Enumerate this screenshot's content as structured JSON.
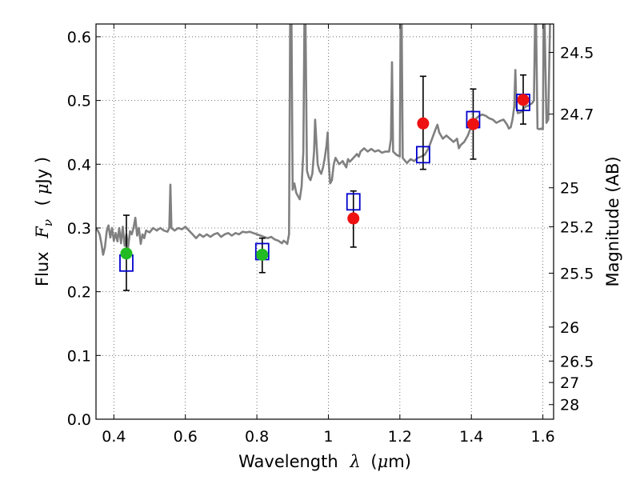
{
  "chart_data": {
    "type": "scatter",
    "title": "",
    "xlabel_prefix": "Wavelength",
    "xlabel_var": "λ",
    "xlabel_unit_open": "(",
    "xlabel_unit_mu": "μ",
    "xlabel_unit_rest": "m)",
    "ylabel_prefix": "Flux",
    "ylabel_var": "F",
    "ylabel_sub": "ν",
    "ylabel_unit_open": "(",
    "ylabel_unit_mu": "μ",
    "ylabel_unit_rest": "Jy )",
    "y2label": "Magnitude (AB)",
    "xlim": [
      0.35,
      1.63
    ],
    "ylim": [
      0.0,
      0.62
    ],
    "x_ticks": [
      {
        "v": 0.4,
        "label": "0.4"
      },
      {
        "v": 0.6,
        "label": "0.6"
      },
      {
        "v": 0.8,
        "label": "0.8"
      },
      {
        "v": 1.0,
        "label": "1"
      },
      {
        "v": 1.2,
        "label": "1.2"
      },
      {
        "v": 1.4,
        "label": "1.4"
      },
      {
        "v": 1.6,
        "label": "1.6"
      }
    ],
    "y_ticks": [
      {
        "v": 0.0,
        "label": "0.0"
      },
      {
        "v": 0.1,
        "label": "0.1"
      },
      {
        "v": 0.2,
        "label": "0.2"
      },
      {
        "v": 0.3,
        "label": "0.3"
      },
      {
        "v": 0.4,
        "label": "0.4"
      },
      {
        "v": 0.5,
        "label": "0.5"
      },
      {
        "v": 0.6,
        "label": "0.6"
      }
    ],
    "y2_ticks": [
      {
        "mag": 24.5,
        "label": "24.5"
      },
      {
        "mag": 24.7,
        "label": "24.7"
      },
      {
        "mag": 25,
        "label": "25"
      },
      {
        "mag": 25.2,
        "label": "25.2"
      },
      {
        "mag": 25.5,
        "label": "25.5"
      },
      {
        "mag": 26,
        "label": "26"
      },
      {
        "mag": 26.5,
        "label": "26.5"
      },
      {
        "mag": 27,
        "label": "27"
      },
      {
        "mag": 28,
        "label": "28"
      }
    ],
    "grid": true,
    "colors": {
      "spectrum": "#808080",
      "model_points": "#0000cc",
      "observed_optical": "#22bb22",
      "observed_nir": "#ee1111",
      "errorbar": "#000000",
      "grid": "#555555"
    },
    "series": [
      {
        "kind": "line",
        "style": "spectrum",
        "points": [
          [
            0.35,
            0.3
          ],
          [
            0.355,
            0.296
          ],
          [
            0.36,
            0.29
          ],
          [
            0.365,
            0.276
          ],
          [
            0.37,
            0.258
          ],
          [
            0.375,
            0.27
          ],
          [
            0.38,
            0.295
          ],
          [
            0.385,
            0.304
          ],
          [
            0.39,
            0.285
          ],
          [
            0.395,
            0.3
          ],
          [
            0.4,
            0.28
          ],
          [
            0.405,
            0.292
          ],
          [
            0.41,
            0.279
          ],
          [
            0.415,
            0.3
          ],
          [
            0.42,
            0.276
          ],
          [
            0.425,
            0.302
          ],
          [
            0.43,
            0.272
          ],
          [
            0.435,
            0.29
          ],
          [
            0.44,
            0.27
          ],
          [
            0.445,
            0.295
          ],
          [
            0.45,
            0.29
          ],
          [
            0.455,
            0.3
          ],
          [
            0.46,
            0.316
          ],
          [
            0.465,
            0.288
          ],
          [
            0.47,
            0.3
          ],
          [
            0.475,
            0.275
          ],
          [
            0.48,
            0.29
          ],
          [
            0.485,
            0.284
          ],
          [
            0.49,
            0.296
          ],
          [
            0.5,
            0.293
          ],
          [
            0.51,
            0.3
          ],
          [
            0.52,
            0.296
          ],
          [
            0.53,
            0.3
          ],
          [
            0.54,
            0.296
          ],
          [
            0.55,
            0.294
          ],
          [
            0.555,
            0.3
          ],
          [
            0.558,
            0.368
          ],
          [
            0.561,
            0.3
          ],
          [
            0.57,
            0.296
          ],
          [
            0.58,
            0.3
          ],
          [
            0.59,
            0.298
          ],
          [
            0.6,
            0.302
          ],
          [
            0.61,
            0.296
          ],
          [
            0.62,
            0.29
          ],
          [
            0.63,
            0.284
          ],
          [
            0.64,
            0.29
          ],
          [
            0.65,
            0.286
          ],
          [
            0.66,
            0.29
          ],
          [
            0.67,
            0.286
          ],
          [
            0.68,
            0.29
          ],
          [
            0.69,
            0.292
          ],
          [
            0.7,
            0.286
          ],
          [
            0.71,
            0.29
          ],
          [
            0.72,
            0.292
          ],
          [
            0.73,
            0.288
          ],
          [
            0.74,
            0.292
          ],
          [
            0.75,
            0.29
          ],
          [
            0.76,
            0.294
          ],
          [
            0.77,
            0.293
          ],
          [
            0.78,
            0.294
          ],
          [
            0.79,
            0.292
          ],
          [
            0.8,
            0.29
          ],
          [
            0.81,
            0.288
          ],
          [
            0.82,
            0.286
          ],
          [
            0.83,
            0.284
          ],
          [
            0.84,
            0.286
          ],
          [
            0.85,
            0.282
          ],
          [
            0.86,
            0.28
          ],
          [
            0.87,
            0.276
          ],
          [
            0.875,
            0.28
          ],
          [
            0.88,
            0.278
          ],
          [
            0.885,
            0.275
          ],
          [
            0.89,
            0.29
          ],
          [
            0.893,
            0.62
          ],
          [
            0.897,
            0.62
          ],
          [
            0.9,
            0.36
          ],
          [
            0.905,
            0.37
          ],
          [
            0.91,
            0.355
          ],
          [
            0.915,
            0.35
          ],
          [
            0.92,
            0.345
          ],
          [
            0.925,
            0.365
          ],
          [
            0.93,
            0.42
          ],
          [
            0.933,
            0.62
          ],
          [
            0.936,
            0.62
          ],
          [
            0.94,
            0.39
          ],
          [
            0.945,
            0.38
          ],
          [
            0.95,
            0.375
          ],
          [
            0.955,
            0.385
          ],
          [
            0.96,
            0.42
          ],
          [
            0.963,
            0.47
          ],
          [
            0.966,
            0.44
          ],
          [
            0.97,
            0.4
          ],
          [
            0.975,
            0.39
          ],
          [
            0.98,
            0.385
          ],
          [
            0.985,
            0.395
          ],
          [
            0.99,
            0.41
          ],
          [
            0.995,
            0.43
          ],
          [
            0.998,
            0.45
          ],
          [
            1.0,
            0.41
          ],
          [
            1.005,
            0.37
          ],
          [
            1.01,
            0.375
          ],
          [
            1.015,
            0.4
          ],
          [
            1.02,
            0.41
          ],
          [
            1.03,
            0.4
          ],
          [
            1.04,
            0.405
          ],
          [
            1.05,
            0.395
          ],
          [
            1.055,
            0.408
          ],
          [
            1.06,
            0.404
          ],
          [
            1.07,
            0.41
          ],
          [
            1.08,
            0.416
          ],
          [
            1.085,
            0.412
          ],
          [
            1.09,
            0.42
          ],
          [
            1.1,
            0.425
          ],
          [
            1.11,
            0.42
          ],
          [
            1.12,
            0.424
          ],
          [
            1.13,
            0.42
          ],
          [
            1.14,
            0.422
          ],
          [
            1.15,
            0.418
          ],
          [
            1.16,
            0.42
          ],
          [
            1.17,
            0.42
          ],
          [
            1.175,
            0.44
          ],
          [
            1.178,
            0.56
          ],
          [
            1.181,
            0.42
          ],
          [
            1.19,
            0.415
          ],
          [
            1.2,
            0.412
          ],
          [
            1.202,
            0.62
          ],
          [
            1.205,
            0.62
          ],
          [
            1.208,
            0.41
          ],
          [
            1.215,
            0.405
          ],
          [
            1.22,
            0.402
          ],
          [
            1.23,
            0.408
          ],
          [
            1.24,
            0.405
          ],
          [
            1.25,
            0.41
          ],
          [
            1.26,
            0.412
          ],
          [
            1.27,
            0.415
          ],
          [
            1.28,
            0.425
          ],
          [
            1.29,
            0.44
          ],
          [
            1.3,
            0.455
          ],
          [
            1.305,
            0.462
          ],
          [
            1.31,
            0.45
          ],
          [
            1.32,
            0.44
          ],
          [
            1.33,
            0.445
          ],
          [
            1.34,
            0.44
          ],
          [
            1.35,
            0.435
          ],
          [
            1.36,
            0.44
          ],
          [
            1.365,
            0.425
          ],
          [
            1.37,
            0.43
          ],
          [
            1.38,
            0.435
          ],
          [
            1.39,
            0.445
          ],
          [
            1.4,
            0.46
          ],
          [
            1.41,
            0.47
          ],
          [
            1.42,
            0.475
          ],
          [
            1.43,
            0.478
          ],
          [
            1.44,
            0.476
          ],
          [
            1.45,
            0.472
          ],
          [
            1.46,
            0.47
          ],
          [
            1.47,
            0.465
          ],
          [
            1.48,
            0.468
          ],
          [
            1.49,
            0.47
          ],
          [
            1.5,
            0.462
          ],
          [
            1.505,
            0.456
          ],
          [
            1.51,
            0.458
          ],
          [
            1.515,
            0.47
          ],
          [
            1.52,
            0.49
          ],
          [
            1.523,
            0.548
          ],
          [
            1.526,
            0.49
          ],
          [
            1.53,
            0.48
          ],
          [
            1.54,
            0.482
          ],
          [
            1.55,
            0.49
          ],
          [
            1.56,
            0.492
          ],
          [
            1.57,
            0.496
          ],
          [
            1.575,
            0.5
          ],
          [
            1.578,
            0.62
          ],
          [
            1.581,
            0.62
          ],
          [
            1.585,
            0.456
          ],
          [
            1.59,
            0.455
          ],
          [
            1.595,
            0.456
          ],
          [
            1.6,
            0.455
          ],
          [
            1.602,
            0.62
          ],
          [
            1.605,
            0.62
          ],
          [
            1.61,
            0.465
          ],
          [
            1.615,
            0.47
          ],
          [
            1.62,
            0.62
          ]
        ]
      },
      {
        "kind": "model_points",
        "style": "open_square",
        "points": [
          [
            0.435,
            0.245
          ],
          [
            0.815,
            0.263
          ],
          [
            1.07,
            0.341
          ],
          [
            1.265,
            0.415
          ],
          [
            1.405,
            0.47
          ],
          [
            1.545,
            0.497
          ]
        ]
      },
      {
        "kind": "observed",
        "style": "filled_circle",
        "points": [
          {
            "x": 0.435,
            "y": 0.26,
            "err": [
              0.202,
              0.32
            ],
            "group": "optical"
          },
          {
            "x": 0.815,
            "y": 0.258,
            "err": [
              0.23,
              0.284
            ],
            "group": "optical"
          },
          {
            "x": 1.07,
            "y": 0.315,
            "err": [
              0.27,
              0.358
            ],
            "group": "nir"
          },
          {
            "x": 1.265,
            "y": 0.464,
            "err": [
              0.392,
              0.538
            ],
            "group": "nir"
          },
          {
            "x": 1.405,
            "y": 0.463,
            "err": [
              0.408,
              0.518
            ],
            "group": "nir"
          },
          {
            "x": 1.545,
            "y": 0.501,
            "err": [
              0.463,
              0.54
            ],
            "group": "nir"
          }
        ]
      }
    ]
  }
}
